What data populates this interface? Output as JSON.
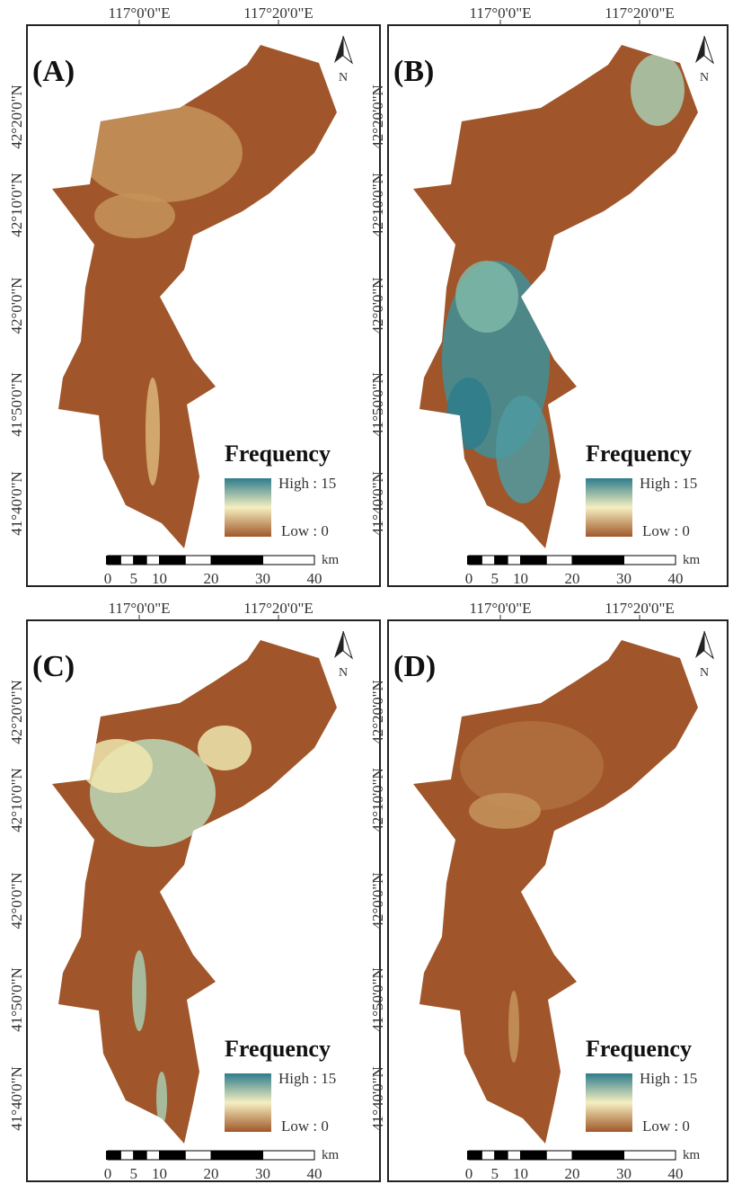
{
  "panels": [
    {
      "label": "(A)",
      "longitudes": [
        "117°0'0\"E",
        "117°20'0\"E"
      ],
      "latitudes": [
        "42°20'0\"N",
        "42°10'0\"N",
        "42°0'0\"N",
        "41°50'0\"N",
        "41°40'0\"N"
      ],
      "north": "N",
      "legend": {
        "title": "Frequency",
        "high": "High : 15",
        "low": "Low : 0"
      },
      "scale": {
        "ticks": [
          0,
          5,
          10,
          20,
          30,
          40
        ],
        "unit": "km"
      }
    },
    {
      "label": "(B)",
      "longitudes": [
        "117°0'0\"E",
        "117°20'0\"E"
      ],
      "latitudes": [
        "42°20'0\"N",
        "42°10'0\"N",
        "42°0'0\"N",
        "41°50'0\"N",
        "41°40'0\"N"
      ],
      "north": "N",
      "legend": {
        "title": "Frequency",
        "high": "High : 15",
        "low": "Low : 0"
      },
      "scale": {
        "ticks": [
          0,
          5,
          10,
          20,
          30,
          40
        ],
        "unit": "km"
      }
    },
    {
      "label": "(C)",
      "longitudes": [
        "117°0'0\"E",
        "117°20'0\"E"
      ],
      "latitudes": [
        "42°20'0\"N",
        "42°10'0\"N",
        "42°0'0\"N",
        "41°50'0\"N",
        "41°40'0\"N"
      ],
      "north": "N",
      "legend": {
        "title": "Frequency",
        "high": "High : 15",
        "low": "Low : 0"
      },
      "scale": {
        "ticks": [
          0,
          5,
          10,
          20,
          30,
          40
        ],
        "unit": "km"
      }
    },
    {
      "label": "(D)",
      "longitudes": [
        "117°0'0\"E",
        "117°20'0\"E"
      ],
      "latitudes": [
        "42°20'0\"N",
        "42°10'0\"N",
        "42°0'0\"N",
        "41°50'0\"N",
        "41°40'0\"N"
      ],
      "north": "N",
      "legend": {
        "title": "Frequency",
        "high": "High : 15",
        "low": "Low : 0"
      },
      "scale": {
        "ticks": [
          0,
          5,
          10,
          20,
          30,
          40
        ],
        "unit": "km"
      }
    }
  ]
}
